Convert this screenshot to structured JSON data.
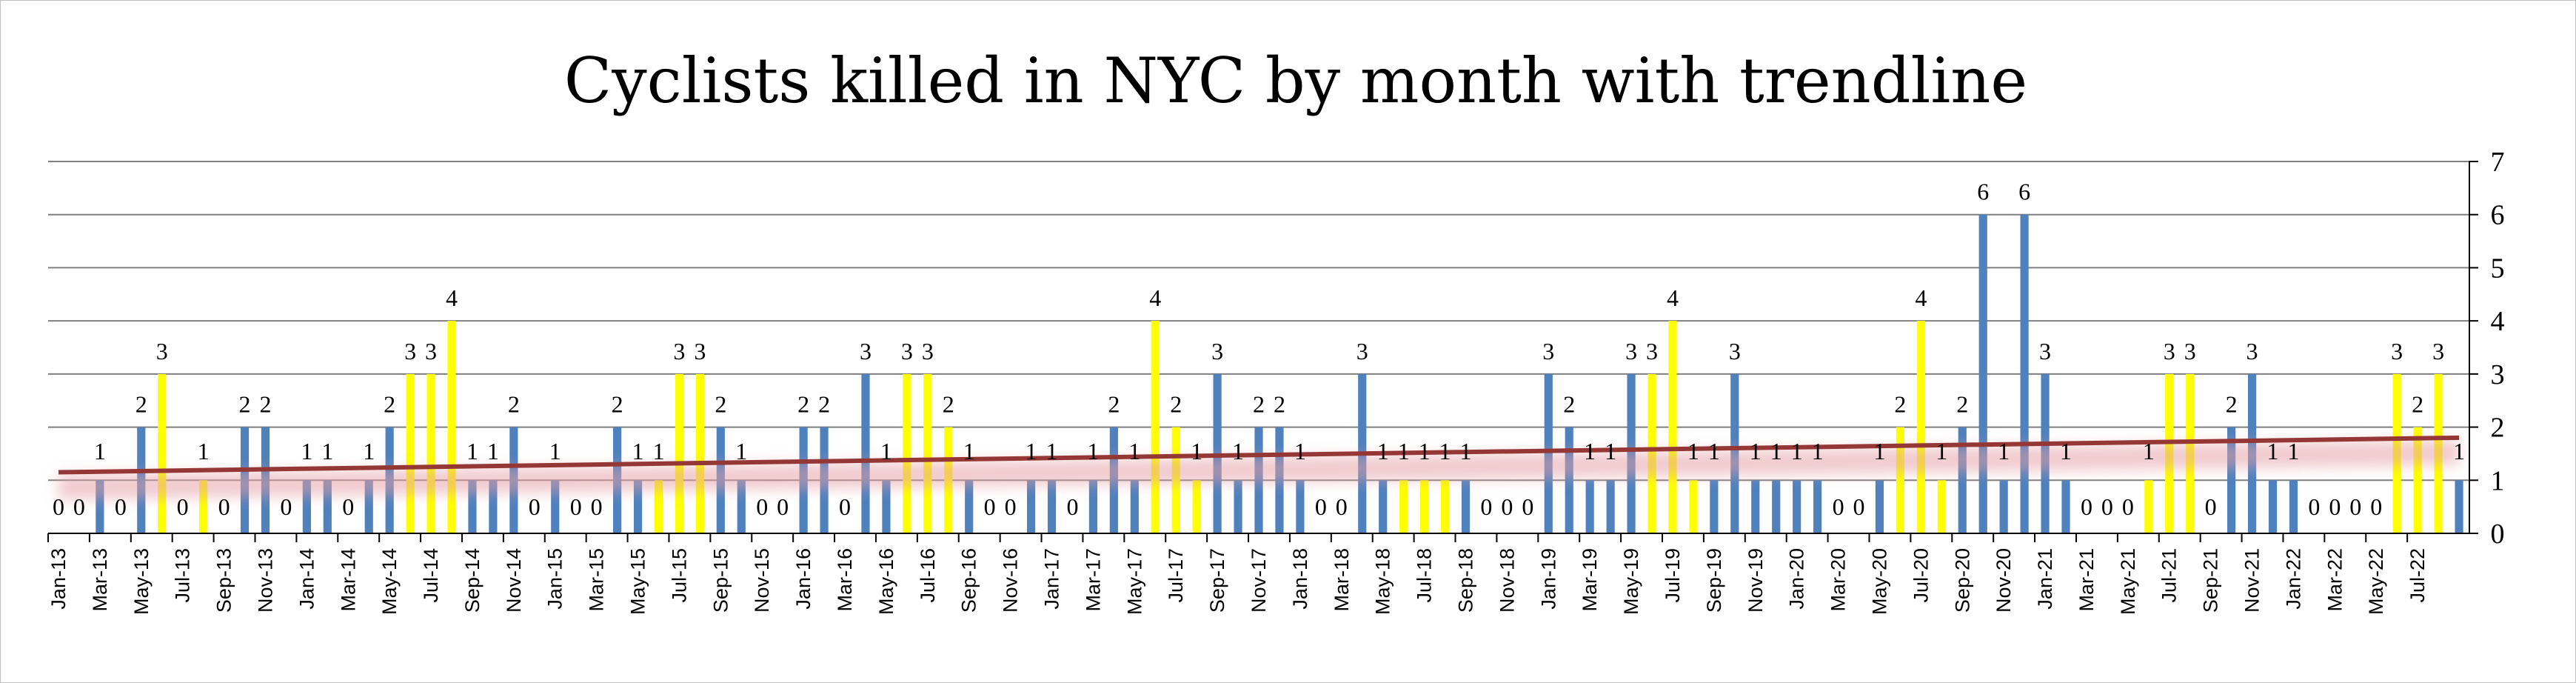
{
  "chart_data": {
    "type": "bar",
    "title": "Cyclists killed in NYC  by month with trendline",
    "y_axis_side": "right",
    "ylim": [
      0,
      7
    ],
    "y_ticks": [
      0,
      1,
      2,
      3,
      4,
      5,
      6,
      7
    ],
    "grid": true,
    "legend": "none",
    "x_tick_labels": [
      "Jan-13",
      "Mar-13",
      "May-13",
      "Jul-13",
      "Sep-13",
      "Nov-13",
      "Jan-14",
      "Mar-14",
      "May-14",
      "Jul-14",
      "Sep-14",
      "Nov-14",
      "Jan-15",
      "Mar-15",
      "May-15",
      "Jul-15",
      "Sep-15",
      "Nov-15",
      "Jan-16",
      "Mar-16",
      "May-16",
      "Jul-16",
      "Sep-16",
      "Nov-16",
      "Jan-17",
      "Mar-17",
      "May-17",
      "Jul-17",
      "Sep-17",
      "Nov-17",
      "Jan-18",
      "Mar-18",
      "May-18",
      "Jul-18",
      "Sep-18",
      "Nov-18",
      "Jan-19",
      "Mar-19",
      "May-19",
      "Jul-19",
      "Sep-19",
      "Nov-19",
      "Jan-20",
      "Mar-20",
      "May-20",
      "Jul-20",
      "Sep-20",
      "Nov-20",
      "Jan-21",
      "Mar-21",
      "May-21",
      "Jul-21",
      "Sep-21",
      "Nov-21",
      "Jan-22",
      "Mar-22",
      "May-22",
      "Jul-22"
    ],
    "values": [
      0,
      0,
      1,
      0,
      2,
      3,
      0,
      1,
      0,
      2,
      2,
      0,
      1,
      1,
      0,
      1,
      2,
      3,
      3,
      4,
      1,
      1,
      2,
      0,
      1,
      0,
      0,
      2,
      1,
      1,
      3,
      3,
      2,
      1,
      0,
      0,
      2,
      2,
      0,
      3,
      1,
      3,
      3,
      2,
      1,
      0,
      0,
      1,
      1,
      0,
      1,
      2,
      1,
      4,
      2,
      1,
      3,
      1,
      2,
      2,
      1,
      0,
      0,
      3,
      1,
      1,
      1,
      1,
      1,
      0,
      0,
      0,
      3,
      2,
      1,
      1,
      3,
      3,
      4,
      1,
      1,
      3,
      1,
      1,
      1,
      1,
      0,
      0,
      1,
      2,
      4,
      1,
      2,
      6,
      1,
      6,
      3,
      1,
      0,
      0,
      0,
      1,
      3,
      3,
      0,
      2,
      3,
      1,
      1,
      0,
      0,
      0,
      0,
      3,
      2,
      3,
      1
    ],
    "highlight_months": [
      "Jun",
      "Jul",
      "Aug"
    ],
    "colors": {
      "bar": "#4f81bd",
      "highlight": "#ffff00",
      "trendline": "#953735",
      "trend_glow": "#e6a0a6",
      "grid": "#7f7f7f"
    },
    "trendline": {
      "type": "linear",
      "start_value": 1.15,
      "end_value": 1.8
    }
  }
}
